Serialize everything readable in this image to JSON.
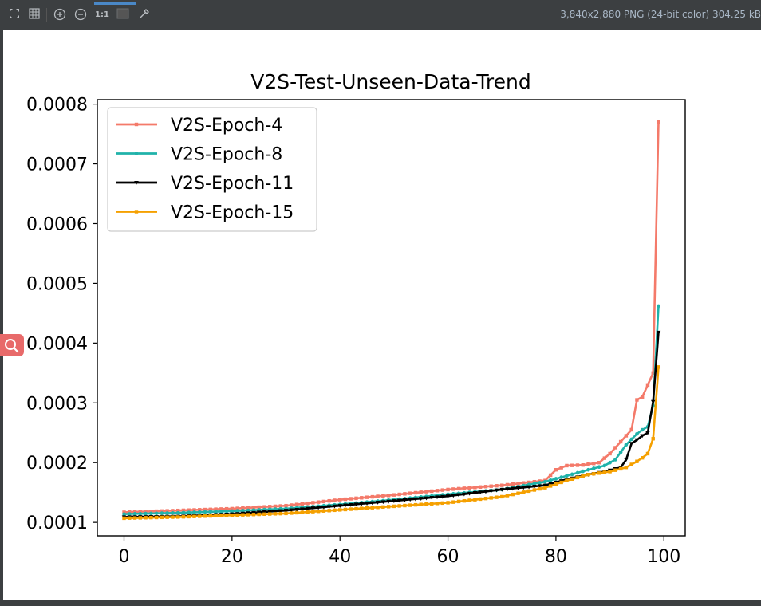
{
  "toolbar": {
    "buttons": [
      {
        "name": "fit-to-window-icon"
      },
      {
        "name": "grid-icon"
      },
      {
        "name": "zoom-in-icon"
      },
      {
        "name": "zoom-out-icon"
      },
      {
        "name": "actual-size-icon",
        "label": "1:1"
      },
      {
        "name": "background-icon"
      },
      {
        "name": "color-picker-icon"
      }
    ],
    "image_info": "3,840x2,880 PNG (24-bit color) 304.25 kB"
  },
  "colors": {
    "V2S-Epoch-4": "#f47a6a",
    "V2S-Epoch-8": "#20b2aa",
    "V2S-Epoch-11": "#000000",
    "V2S-Epoch-15": "#f5a000"
  },
  "chart_data": {
    "type": "line",
    "title": "V2S-Test-Unseen-Data-Trend",
    "xlabel": "",
    "ylabel": "",
    "xlim": [
      -4.95,
      103.95
    ],
    "ylim": [
      7.75e-05,
      0.0008075
    ],
    "xticks": [
      0,
      20,
      40,
      60,
      80,
      100
    ],
    "yticks": [
      0.0001,
      0.0002,
      0.0003,
      0.0004,
      0.0005,
      0.0006,
      0.0007,
      0.0008
    ],
    "ytick_labels": [
      "0.0001",
      "0.0002",
      "0.0003",
      "0.0004",
      "0.0005",
      "0.0006",
      "0.0007",
      "0.0008"
    ],
    "legend": "upper-left",
    "grid": false,
    "series": [
      {
        "name": "V2S-Epoch-4",
        "marker": "square",
        "anchors": [
          [
            0,
            0.000117
          ],
          [
            10,
            0.00012
          ],
          [
            20,
            0.000123
          ],
          [
            30,
            0.000128
          ],
          [
            40,
            0.000138
          ],
          [
            50,
            0.000146
          ],
          [
            60,
            0.000155
          ],
          [
            70,
            0.000162
          ],
          [
            78,
            0.00017
          ],
          [
            80,
            0.000188
          ],
          [
            82,
            0.000195
          ],
          [
            85,
            0.000196
          ],
          [
            88,
            0.0002
          ],
          [
            90,
            0.000215
          ],
          [
            92,
            0.000235
          ],
          [
            94,
            0.000255
          ],
          [
            95,
            0.000305
          ],
          [
            96,
            0.00031
          ],
          [
            97,
            0.00033
          ],
          [
            98,
            0.00035
          ],
          [
            99,
            0.00077
          ]
        ]
      },
      {
        "name": "V2S-Epoch-8",
        "marker": "circle",
        "anchors": [
          [
            0,
            0.000114
          ],
          [
            10,
            0.000116
          ],
          [
            20,
            0.000119
          ],
          [
            30,
            0.000123
          ],
          [
            40,
            0.00013
          ],
          [
            50,
            0.000138
          ],
          [
            60,
            0.000147
          ],
          [
            70,
            0.000155
          ],
          [
            78,
            0.000168
          ],
          [
            82,
            0.000178
          ],
          [
            86,
            0.000188
          ],
          [
            89,
            0.000195
          ],
          [
            91,
            0.000205
          ],
          [
            93,
            0.00023
          ],
          [
            95,
            0.000248
          ],
          [
            96,
            0.000255
          ],
          [
            97,
            0.00026
          ],
          [
            98,
            0.000295
          ],
          [
            99,
            0.000462
          ]
        ]
      },
      {
        "name": "V2S-Epoch-11",
        "marker": "triangle-down",
        "anchors": [
          [
            0,
            0.000109
          ],
          [
            10,
            0.00011
          ],
          [
            20,
            0.000114
          ],
          [
            30,
            0.00012
          ],
          [
            40,
            0.000128
          ],
          [
            50,
            0.000136
          ],
          [
            60,
            0.000144
          ],
          [
            70,
            0.000155
          ],
          [
            78,
            0.000162
          ],
          [
            82,
            0.000172
          ],
          [
            86,
            0.00018
          ],
          [
            89,
            0.000185
          ],
          [
            92,
            0.000192
          ],
          [
            93,
            0.000205
          ],
          [
            94,
            0.000232
          ],
          [
            95,
            0.000238
          ],
          [
            96,
            0.000245
          ],
          [
            97,
            0.00025
          ],
          [
            98,
            0.000302
          ],
          [
            99,
            0.000418
          ]
        ]
      },
      {
        "name": "V2S-Epoch-15",
        "marker": "square",
        "anchors": [
          [
            0,
            0.000107
          ],
          [
            10,
            0.000109
          ],
          [
            20,
            0.000112
          ],
          [
            30,
            0.000115
          ],
          [
            40,
            0.000121
          ],
          [
            50,
            0.000127
          ],
          [
            60,
            0.000133
          ],
          [
            70,
            0.000143
          ],
          [
            78,
            0.000158
          ],
          [
            82,
            0.00017
          ],
          [
            86,
            0.00018
          ],
          [
            90,
            0.000185
          ],
          [
            93,
            0.000192
          ],
          [
            95,
            0.000202
          ],
          [
            96,
            0.000208
          ],
          [
            97,
            0.000215
          ],
          [
            98,
            0.00024
          ],
          [
            99,
            0.00036
          ]
        ]
      }
    ]
  }
}
